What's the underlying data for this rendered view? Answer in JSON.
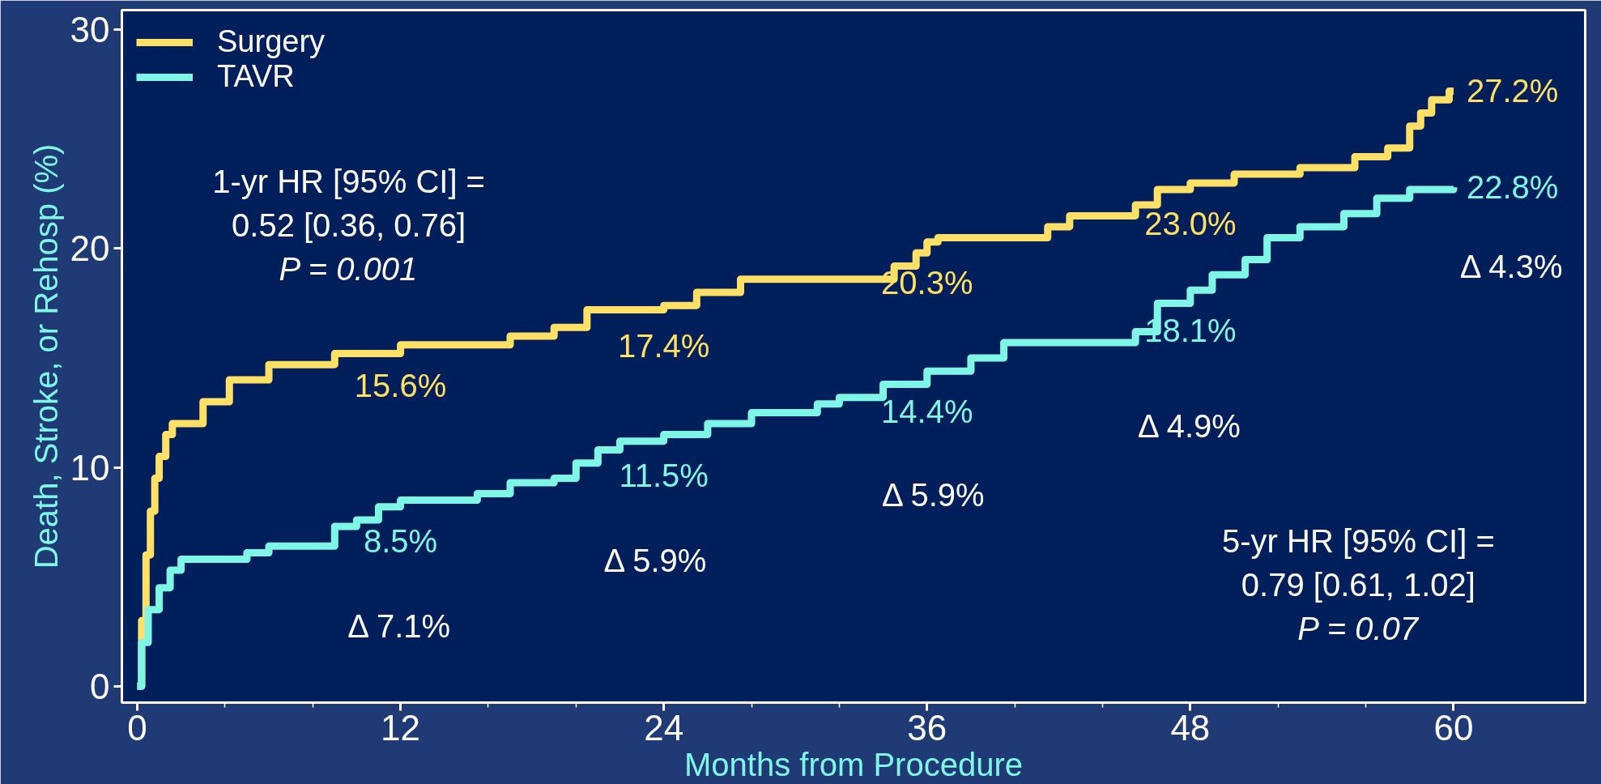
{
  "chart_data": {
    "type": "step",
    "xlabel": "Months from Procedure",
    "ylabel": "Death, Stroke, or Rehosp (%)",
    "xlim": [
      -0.7,
      66
    ],
    "ylim": [
      -0.75,
      30.9
    ],
    "xticks": [
      0,
      {
        "value": 4,
        "label": null
      },
      {
        "value": 8,
        "label": null
      },
      12,
      {
        "value": 16,
        "label": null
      },
      {
        "value": 20,
        "label": null
      },
      24,
      {
        "value": 28,
        "label": null
      },
      {
        "value": 32,
        "label": null
      },
      36,
      {
        "value": 40,
        "label": null
      },
      {
        "value": 44,
        "label": null
      },
      48,
      {
        "value": 52,
        "label": null
      },
      {
        "value": 56,
        "label": null
      },
      60
    ],
    "yticks": [
      0,
      10,
      20,
      30
    ],
    "grid": false,
    "legend": "top left",
    "marker": "none",
    "line_style": "solid",
    "series": [
      {
        "name": "Surgery",
        "color": "#ffe066",
        "x": [
          0,
          0.2,
          0.4,
          0.6,
          0.8,
          1,
          1.3,
          1.6,
          3,
          4.2,
          6,
          9,
          12,
          17,
          19,
          20.5,
          24,
          25.5,
          27.5,
          34.5,
          35.5,
          36,
          36.5,
          41.5,
          42.5,
          45.5,
          46.5,
          48,
          50,
          53,
          55.5,
          57,
          58,
          58.5,
          59,
          59.8,
          60
        ],
        "values": [
          0,
          3,
          6,
          8,
          9.5,
          10.5,
          11.5,
          12,
          13,
          14,
          14.7,
          15.2,
          15.6,
          16.0,
          16.4,
          17.2,
          17.4,
          18.0,
          18.6,
          19.2,
          19.8,
          20.3,
          20.5,
          21,
          21.5,
          22,
          22.7,
          23.0,
          23.4,
          23.7,
          24.2,
          24.6,
          25.6,
          26.2,
          26.8,
          27.2,
          27.2
        ],
        "value_labels": [
          null,
          null,
          null,
          null,
          null,
          null,
          null,
          null,
          null,
          null,
          null,
          null,
          "15.6%",
          null,
          null,
          null,
          "17.4%",
          null,
          null,
          null,
          null,
          "20.3%",
          null,
          null,
          null,
          null,
          null,
          "23.0%",
          null,
          null,
          null,
          null,
          null,
          null,
          null,
          null,
          "27.2%"
        ]
      },
      {
        "name": "TAVR",
        "color": "#7ff5e6",
        "x": [
          0,
          0.2,
          0.5,
          1,
          1.5,
          2,
          5,
          6,
          9,
          10,
          11,
          12,
          15.5,
          17,
          19,
          20,
          21,
          22,
          24,
          26,
          28,
          31,
          32,
          34,
          36,
          38,
          39.5,
          45.5,
          46.5,
          48,
          49,
          50.5,
          51.5,
          53,
          55,
          56.5,
          58,
          60
        ],
        "values": [
          0,
          2,
          3.5,
          4.5,
          5.3,
          5.8,
          6.1,
          6.4,
          7.3,
          7.6,
          8.2,
          8.5,
          8.8,
          9.3,
          9.5,
          10.2,
          10.8,
          11.2,
          11.5,
          12.0,
          12.5,
          12.9,
          13.2,
          13.8,
          14.4,
          15.0,
          15.7,
          16.2,
          17.5,
          18.1,
          18.8,
          19.5,
          20.5,
          21.0,
          21.6,
          22.3,
          22.7,
          22.8
        ],
        "value_labels": [
          null,
          null,
          null,
          null,
          null,
          null,
          null,
          null,
          null,
          null,
          null,
          "8.5%",
          null,
          null,
          null,
          null,
          null,
          null,
          "11.5%",
          null,
          null,
          null,
          null,
          null,
          "14.4%",
          null,
          null,
          null,
          null,
          "18.1%",
          null,
          null,
          null,
          null,
          null,
          null,
          null,
          "22.8%"
        ]
      }
    ],
    "annotations": [
      "1-yr HR [95% CI] =\n0.52 [0.36, 0.76]\nP = 0.001",
      "5-yr HR [95% CI] =\n0.79 [0.61, 1.02]\nP = 0.07",
      "Δ 7.1%",
      "Δ 5.9%",
      "Δ 5.9%",
      "Δ 4.9%",
      "Δ 4.3%"
    ]
  }
}
